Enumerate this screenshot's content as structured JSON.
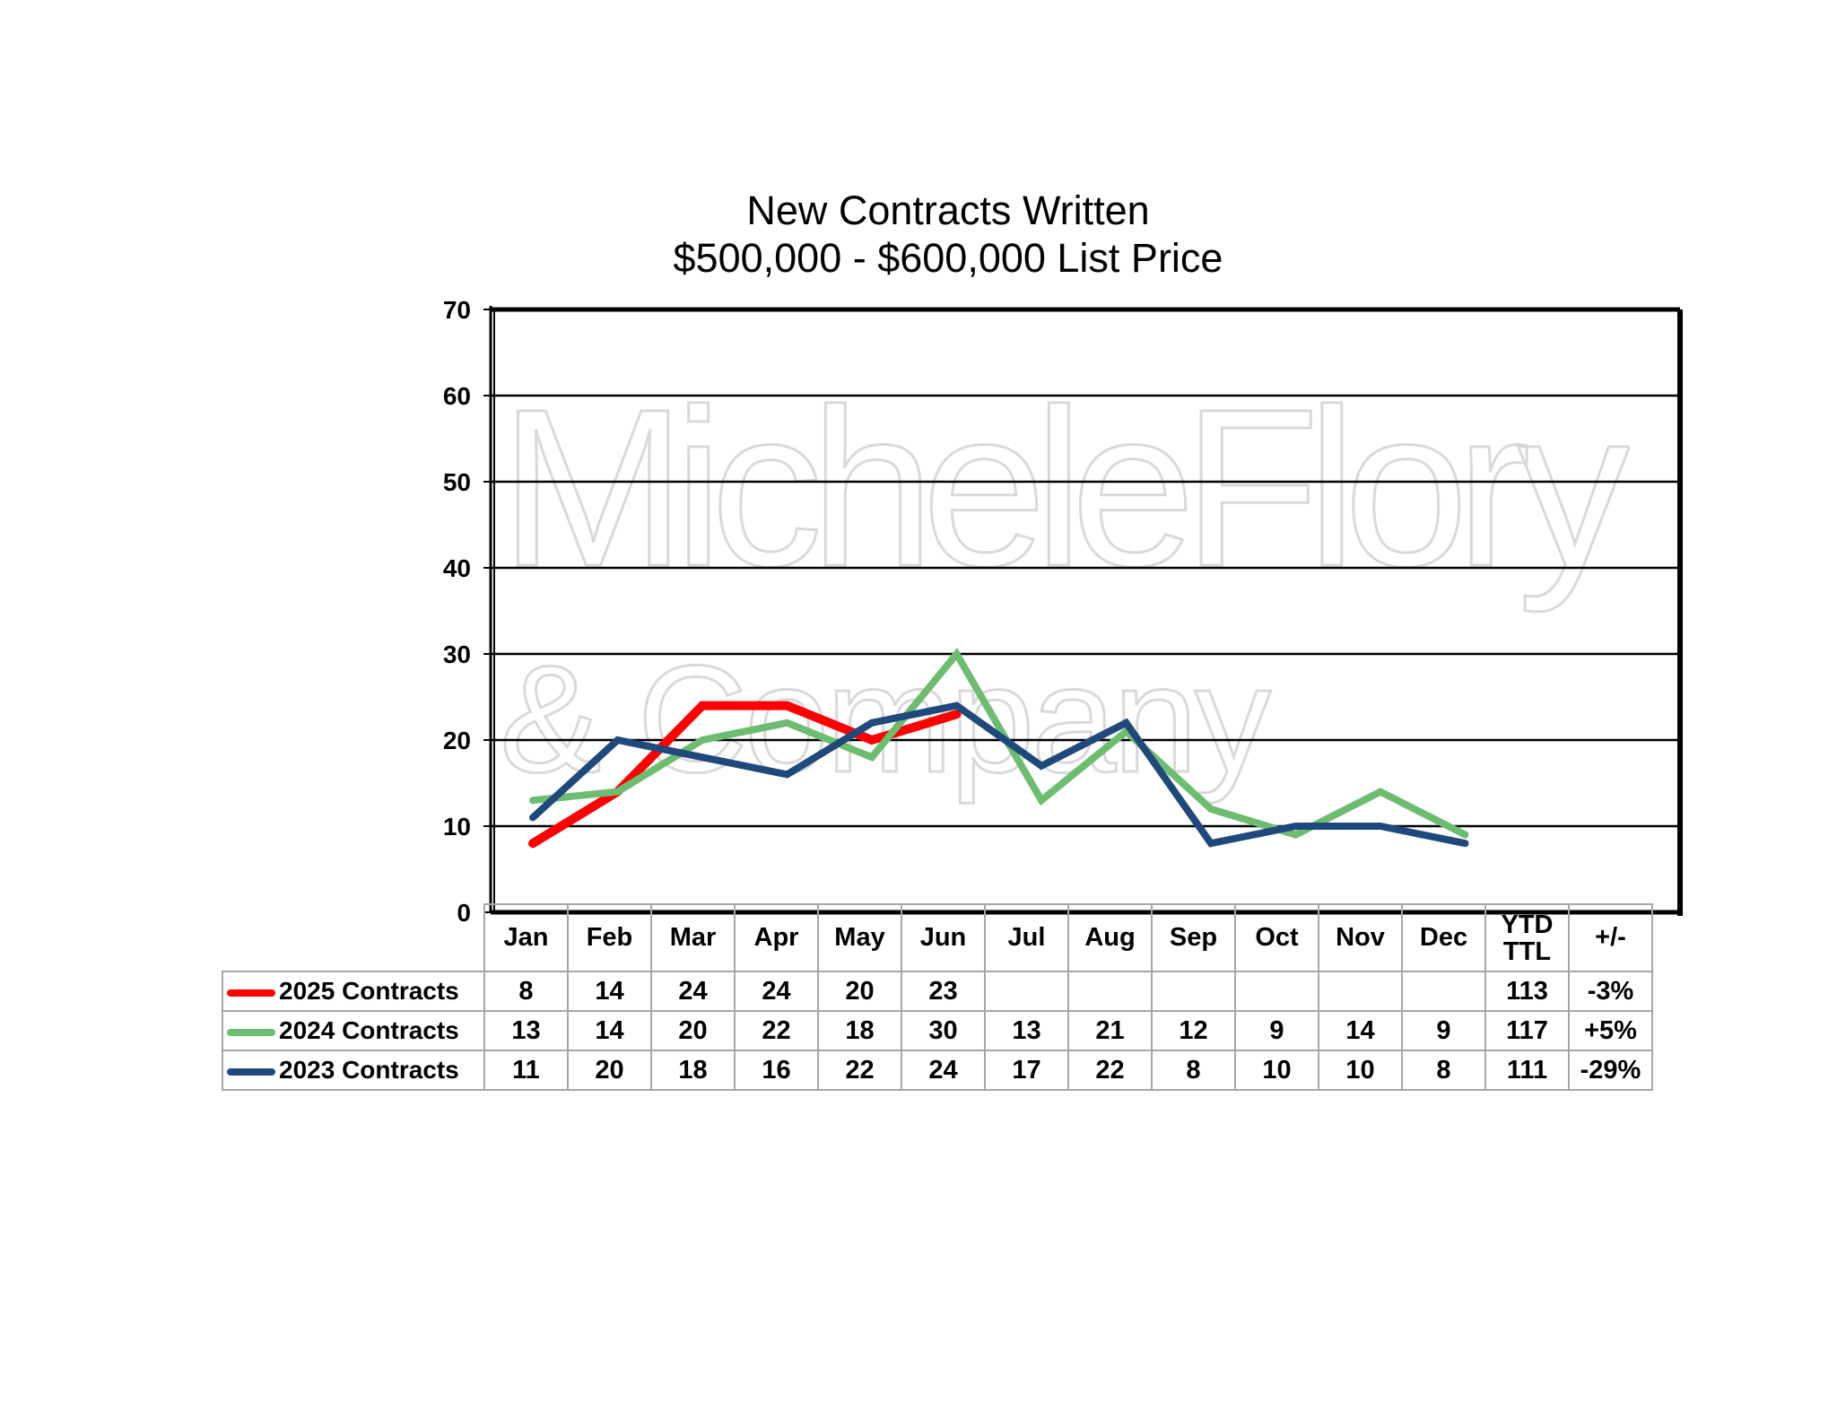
{
  "chart_data": {
    "type": "line",
    "title": "New Contracts Written",
    "subtitle": "$500,000 - $600,000 List Price",
    "categories": [
      "Jan",
      "Feb",
      "Mar",
      "Apr",
      "May",
      "Jun",
      "Jul",
      "Aug",
      "Sep",
      "Oct",
      "Nov",
      "Dec"
    ],
    "ylim": [
      0,
      70
    ],
    "yticks": [
      "0",
      "10",
      "20",
      "30",
      "40",
      "50",
      "60",
      "70"
    ],
    "grid": true,
    "series": [
      {
        "name": "2025 Contracts",
        "color": "#ff0000",
        "values": [
          8,
          14,
          24,
          24,
          20,
          23,
          null,
          null,
          null,
          null,
          null,
          null
        ],
        "ytd": "113",
        "change": "-3%"
      },
      {
        "name": "2024 Contracts",
        "color": "#6cbd6f",
        "values": [
          13,
          14,
          20,
          22,
          18,
          30,
          13,
          21,
          12,
          9,
          14,
          9
        ],
        "ytd": "117",
        "change": "+5%"
      },
      {
        "name": "2023 Contracts",
        "color": "#1f497d",
        "values": [
          11,
          20,
          18,
          16,
          22,
          24,
          17,
          22,
          8,
          10,
          10,
          8
        ],
        "ytd": "111",
        "change": "-29%"
      }
    ],
    "table_headers": {
      "ytd_line1": "YTD",
      "ytd_line2": "TTL",
      "change": "+/-"
    }
  },
  "watermark": {
    "line1": "MicheleFlory",
    "line2": "& Company"
  }
}
